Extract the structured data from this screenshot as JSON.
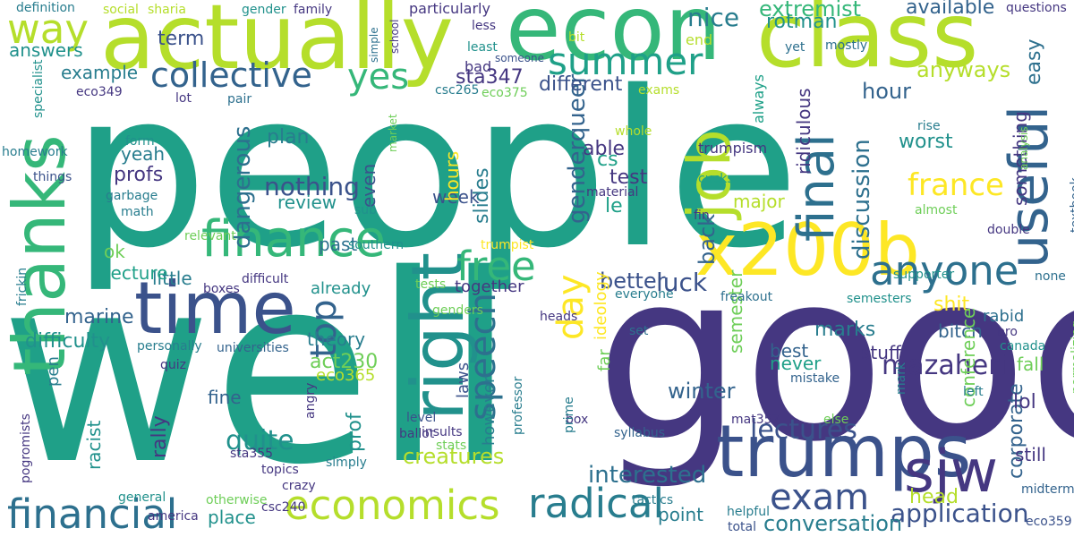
{
  "palette": {
    "indigo": "#453781",
    "dark_blue": "#3b528b",
    "blue": "#33638d",
    "steel": "#2d708e",
    "teal_blue": "#287d8e",
    "teal": "#21918c",
    "sea": "#1fa088",
    "green": "#35b779",
    "light_green": "#6ece58",
    "lime": "#b5de2b",
    "yellow": "#fde725"
  },
  "words": [
    {
      "text": "people",
      "color": "sea"
    },
    {
      "text": "well",
      "color": "sea"
    },
    {
      "text": "good",
      "color": "indigo"
    },
    {
      "text": "actually",
      "color": "lime"
    },
    {
      "text": "econ",
      "color": "green"
    },
    {
      "text": "class",
      "color": "lime"
    },
    {
      "text": "time",
      "color": "dark_blue"
    },
    {
      "text": "thanks",
      "color": "green"
    },
    {
      "text": "right",
      "color": "teal"
    },
    {
      "text": "x200b",
      "color": "yellow"
    },
    {
      "text": "trumps",
      "color": "dark_blue"
    },
    {
      "text": "sjw",
      "color": "indigo"
    },
    {
      "text": "job",
      "color": "lime"
    },
    {
      "text": "useful",
      "color": "blue"
    },
    {
      "text": "final",
      "color": "steel"
    },
    {
      "text": "finance",
      "color": "green"
    },
    {
      "text": "free",
      "color": "green"
    },
    {
      "text": "anyone",
      "color": "steel"
    },
    {
      "text": "economics",
      "color": "lime"
    },
    {
      "text": "radical",
      "color": "teal_blue"
    },
    {
      "text": "financial",
      "color": "steel"
    },
    {
      "text": "exam",
      "color": "dark_blue"
    },
    {
      "text": "way",
      "color": "lime"
    },
    {
      "text": "summer",
      "color": "sea"
    },
    {
      "text": "collective",
      "color": "blue"
    },
    {
      "text": "yes",
      "color": "green"
    },
    {
      "text": "day",
      "color": "yellow"
    },
    {
      "text": "top",
      "color": "blue"
    },
    {
      "text": "speech",
      "color": "steel"
    },
    {
      "text": "france",
      "color": "yellow"
    },
    {
      "text": "application",
      "color": "dark_blue"
    },
    {
      "text": "trumpism",
      "color": "indigo"
    },
    {
      "text": "extremist",
      "color": "green"
    },
    {
      "text": "available",
      "color": "blue"
    },
    {
      "text": "nice",
      "color": "teal_blue"
    },
    {
      "text": "rotman",
      "color": "teal"
    },
    {
      "text": "anyways",
      "color": "lime"
    },
    {
      "text": "easy",
      "color": "steel"
    },
    {
      "text": "hour",
      "color": "blue"
    },
    {
      "text": "discussion",
      "color": "steel"
    },
    {
      "text": "lectures",
      "color": "dark_blue"
    },
    {
      "text": "mazaheri",
      "color": "indigo"
    },
    {
      "text": "interested",
      "color": "steel"
    },
    {
      "text": "conversation",
      "color": "teal_blue"
    },
    {
      "text": "genderqueer",
      "color": "blue"
    },
    {
      "text": "nothing",
      "color": "dark_blue"
    },
    {
      "text": "dangerous",
      "color": "steel"
    },
    {
      "text": "quite",
      "color": "teal"
    },
    {
      "text": "marine",
      "color": "blue"
    },
    {
      "text": "difficulty",
      "color": "teal"
    },
    {
      "text": "creatures",
      "color": "lime"
    },
    {
      "text": "winter",
      "color": "blue"
    },
    {
      "text": "luck",
      "color": "dark_blue"
    },
    {
      "text": "better",
      "color": "dark_blue"
    },
    {
      "text": "back",
      "color": "blue"
    },
    {
      "text": "marks",
      "color": "teal_blue"
    },
    {
      "text": "corporate",
      "color": "blue"
    },
    {
      "text": "sta347",
      "color": "indigo"
    },
    {
      "text": "different",
      "color": "dark_blue"
    },
    {
      "text": "term",
      "color": "dark_blue"
    },
    {
      "text": "answers",
      "color": "teal"
    },
    {
      "text": "example",
      "color": "teal_blue"
    },
    {
      "text": "plan",
      "color": "teal_blue"
    },
    {
      "text": "profs",
      "color": "indigo"
    },
    {
      "text": "yeah",
      "color": "teal_blue"
    },
    {
      "text": "review",
      "color": "teal"
    },
    {
      "text": "past",
      "color": "steel"
    },
    {
      "text": "little",
      "color": "teal_blue"
    },
    {
      "text": "lecture",
      "color": "sea"
    },
    {
      "text": "ok",
      "color": "light_green"
    },
    {
      "text": "already",
      "color": "teal"
    },
    {
      "text": "together",
      "color": "indigo"
    },
    {
      "text": "theory",
      "color": "teal_blue"
    },
    {
      "text": "act230",
      "color": "light_green"
    },
    {
      "text": "eco365",
      "color": "lime"
    },
    {
      "text": "fine",
      "color": "blue"
    },
    {
      "text": "place",
      "color": "teal"
    },
    {
      "text": "point",
      "color": "teal_blue"
    },
    {
      "text": "head",
      "color": "lime"
    },
    {
      "text": "stuff",
      "color": "indigo"
    },
    {
      "text": "best",
      "color": "blue"
    },
    {
      "text": "never",
      "color": "sea"
    },
    {
      "text": "lol",
      "color": "indigo"
    },
    {
      "text": "fall",
      "color": "light_green"
    },
    {
      "text": "shit",
      "color": "yellow"
    },
    {
      "text": "rabid",
      "color": "steel"
    },
    {
      "text": "bitch",
      "color": "blue"
    },
    {
      "text": "worst",
      "color": "teal"
    },
    {
      "text": "something",
      "color": "indigo"
    },
    {
      "text": "major",
      "color": "lime"
    },
    {
      "text": "test",
      "color": "indigo"
    },
    {
      "text": "able",
      "color": "indigo"
    },
    {
      "text": "cs",
      "color": "sea"
    },
    {
      "text": "le",
      "color": "sea"
    },
    {
      "text": "week",
      "color": "dark_blue"
    },
    {
      "text": "hours",
      "color": "yellow"
    },
    {
      "text": "slides",
      "color": "teal_blue"
    },
    {
      "text": "even",
      "color": "dark_blue"
    },
    {
      "text": "ideology",
      "color": "yellow"
    },
    {
      "text": "laws",
      "color": "dark_blue"
    },
    {
      "text": "however",
      "color": "teal_blue"
    },
    {
      "text": "semester",
      "color": "light_green"
    },
    {
      "text": "conference",
      "color": "light_green"
    },
    {
      "text": "ridiculous",
      "color": "indigo"
    },
    {
      "text": "always",
      "color": "sea"
    },
    {
      "text": "still",
      "color": "indigo"
    },
    {
      "text": "prof",
      "color": "teal"
    },
    {
      "text": "rally",
      "color": "indigo"
    },
    {
      "text": "racist",
      "color": "teal"
    },
    {
      "text": "pen",
      "color": "teal_blue"
    },
    {
      "text": "far",
      "color": "light_green"
    },
    {
      "text": "bad",
      "color": "indigo"
    },
    {
      "text": "definition",
      "color": "teal_blue"
    },
    {
      "text": "social",
      "color": "lime"
    },
    {
      "text": "sharia",
      "color": "lime"
    },
    {
      "text": "gender",
      "color": "teal"
    },
    {
      "text": "family",
      "color": "indigo"
    },
    {
      "text": "particularly",
      "color": "indigo"
    },
    {
      "text": "questions",
      "color": "indigo"
    },
    {
      "text": "less",
      "color": "indigo"
    },
    {
      "text": "least",
      "color": "teal"
    },
    {
      "text": "bit",
      "color": "lime"
    },
    {
      "text": "end",
      "color": "lime"
    },
    {
      "text": "yet",
      "color": "steel"
    },
    {
      "text": "mostly",
      "color": "steel"
    },
    {
      "text": "school",
      "color": "indigo"
    },
    {
      "text": "simple",
      "color": "steel"
    },
    {
      "text": "someone",
      "color": "dark_blue"
    },
    {
      "text": "csc265",
      "color": "teal_blue"
    },
    {
      "text": "eco375",
      "color": "light_green"
    },
    {
      "text": "exams",
      "color": "lime"
    },
    {
      "text": "eco349",
      "color": "indigo"
    },
    {
      "text": "lot",
      "color": "indigo"
    },
    {
      "text": "pair",
      "color": "steel"
    },
    {
      "text": "specialist",
      "color": "teal"
    },
    {
      "text": "form",
      "color": "teal"
    },
    {
      "text": "homework",
      "color": "teal_blue"
    },
    {
      "text": "things",
      "color": "dark_blue"
    },
    {
      "text": "garbage",
      "color": "teal_blue"
    },
    {
      "text": "math",
      "color": "teal_blue"
    },
    {
      "text": "market",
      "color": "light_green"
    },
    {
      "text": "whole",
      "color": "lime"
    },
    {
      "text": "material",
      "color": "indigo"
    },
    {
      "text": "cucks",
      "color": "sea"
    },
    {
      "text": "fin",
      "color": "indigo"
    },
    {
      "text": "rise",
      "color": "teal_blue"
    },
    {
      "text": "analysis",
      "color": "light_green"
    },
    {
      "text": "textbook",
      "color": "blue"
    },
    {
      "text": "almost",
      "color": "light_green"
    },
    {
      "text": "double",
      "color": "indigo"
    },
    {
      "text": "none",
      "color": "steel"
    },
    {
      "text": "supporter",
      "color": "teal"
    },
    {
      "text": "sub",
      "color": "teal"
    },
    {
      "text": "relevant",
      "color": "light_green"
    },
    {
      "text": "frickin",
      "color": "teal_blue"
    },
    {
      "text": "southern",
      "color": "teal"
    },
    {
      "text": "trumpist",
      "color": "yellow"
    },
    {
      "text": "boxes",
      "color": "indigo"
    },
    {
      "text": "difficult",
      "color": "indigo"
    },
    {
      "text": "tests",
      "color": "light_green"
    },
    {
      "text": "genders",
      "color": "light_green"
    },
    {
      "text": "everyone",
      "color": "teal_blue"
    },
    {
      "text": "freakout",
      "color": "steel"
    },
    {
      "text": "semesters",
      "color": "teal"
    },
    {
      "text": "heads",
      "color": "indigo"
    },
    {
      "text": "personally",
      "color": "teal_blue"
    },
    {
      "text": "universities",
      "color": "blue"
    },
    {
      "text": "set",
      "color": "steel"
    },
    {
      "text": "bro",
      "color": "indigo"
    },
    {
      "text": "canada",
      "color": "teal"
    },
    {
      "text": "normalizing",
      "color": "light_green"
    },
    {
      "text": "quiz",
      "color": "indigo"
    },
    {
      "text": "ballot",
      "color": "indigo"
    },
    {
      "text": "mistake",
      "color": "blue"
    },
    {
      "text": "mark",
      "color": "teal_blue"
    },
    {
      "text": "left",
      "color": "teal_blue"
    },
    {
      "text": "angry",
      "color": "indigo"
    },
    {
      "text": "level",
      "color": "dark_blue"
    },
    {
      "text": "insults",
      "color": "indigo"
    },
    {
      "text": "professor",
      "color": "teal_blue"
    },
    {
      "text": "box",
      "color": "indigo"
    },
    {
      "text": "else",
      "color": "light_green"
    },
    {
      "text": "pogromists",
      "color": "indigo"
    },
    {
      "text": "sta355",
      "color": "indigo"
    },
    {
      "text": "simply",
      "color": "teal_blue"
    },
    {
      "text": "mat357",
      "color": "indigo"
    },
    {
      "text": "midterm",
      "color": "blue"
    },
    {
      "text": "syllabus",
      "color": "blue"
    },
    {
      "text": "prime",
      "color": "teal_blue"
    },
    {
      "text": "topics",
      "color": "indigo"
    },
    {
      "text": "crazy",
      "color": "indigo"
    },
    {
      "text": "stats",
      "color": "light_green"
    },
    {
      "text": "general",
      "color": "teal"
    },
    {
      "text": "america",
      "color": "indigo"
    },
    {
      "text": "csc240",
      "color": "indigo"
    },
    {
      "text": "otherwise",
      "color": "light_green"
    },
    {
      "text": "tactics",
      "color": "teal_blue"
    },
    {
      "text": "helpful",
      "color": "teal_blue"
    },
    {
      "text": "total",
      "color": "dark_blue"
    },
    {
      "text": "eco359",
      "color": "dark_blue"
    }
  ]
}
